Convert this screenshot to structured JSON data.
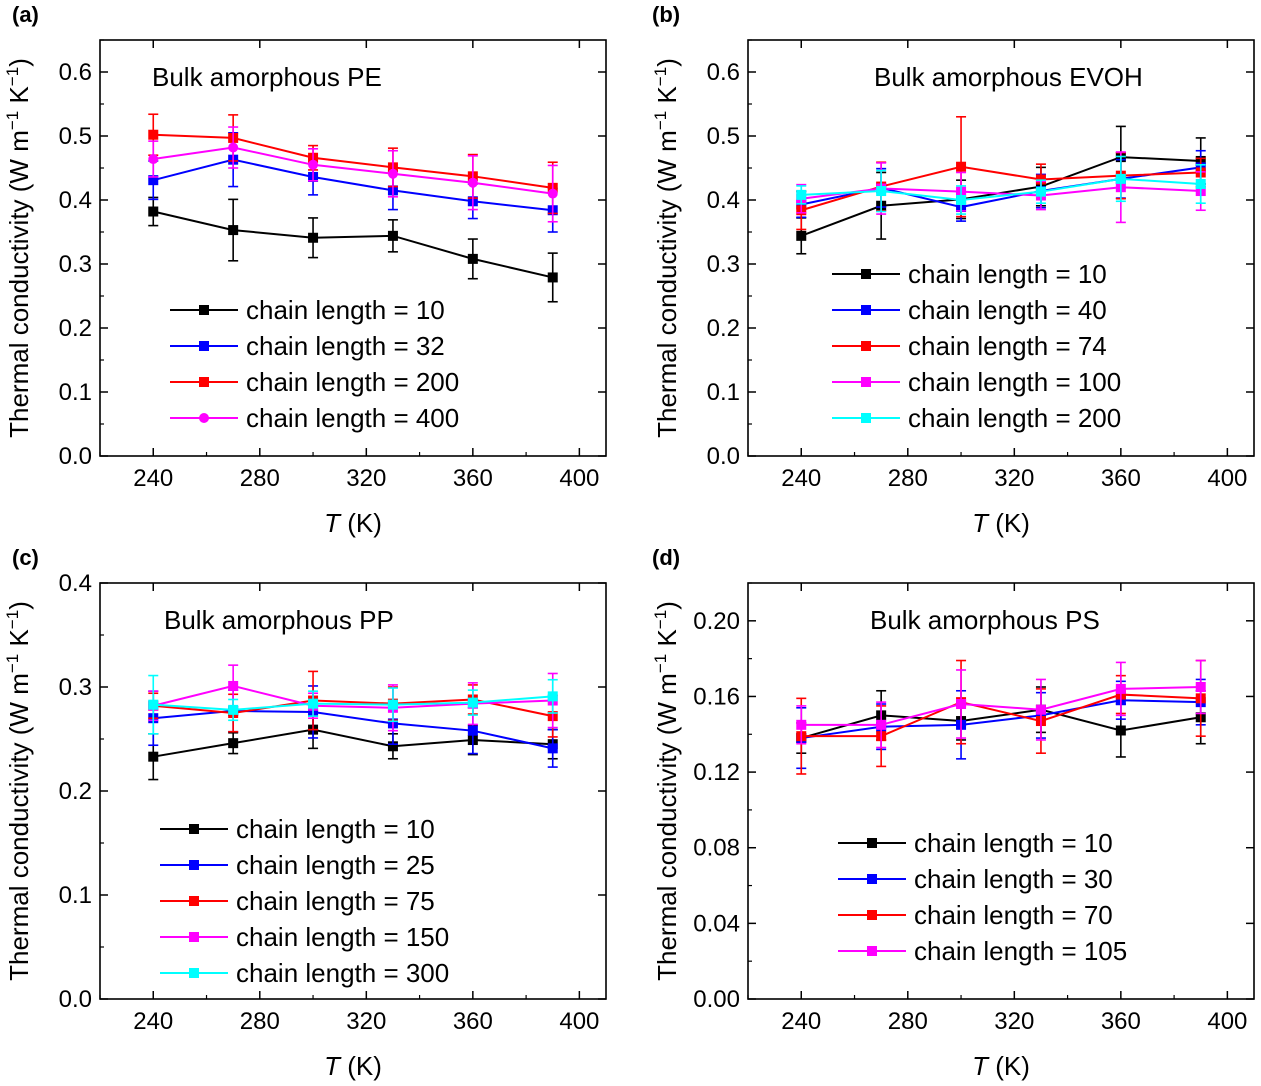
{
  "chart_data": [
    {
      "type": "line",
      "panel_label": "(a)",
      "title": "Bulk amorphous PE",
      "xlabel_italic": "T",
      "xlabel_rest": " (K)",
      "ylabel": "Thermal conductivity (W m",
      "ylabel_exp1": "−1",
      "ylabel_mid": " K",
      "ylabel_exp2": "−1",
      "ylabel_end": ")",
      "xlim": [
        220,
        410
      ],
      "ylim": [
        0.0,
        0.65
      ],
      "xticks": [
        "240",
        "280",
        "320",
        "360",
        "400"
      ],
      "yticks": [
        "0.0",
        "0.1",
        "0.2",
        "0.3",
        "0.4",
        "0.5",
        "0.6"
      ],
      "x": [
        240,
        270,
        300,
        330,
        360,
        390
      ],
      "legend_position": "lower-left",
      "series": [
        {
          "name": "chain length = 10",
          "color": "#000000",
          "marker": "square",
          "values": [
            0.382,
            0.353,
            0.341,
            0.344,
            0.308,
            0.279
          ],
          "errors": [
            0.022,
            0.048,
            0.031,
            0.025,
            0.031,
            0.038
          ]
        },
        {
          "name": "chain length = 32",
          "color": "#0000ff",
          "marker": "square",
          "values": [
            0.431,
            0.463,
            0.436,
            0.415,
            0.398,
            0.384
          ],
          "errors": [
            0.03,
            0.042,
            0.028,
            0.03,
            0.027,
            0.034
          ]
        },
        {
          "name": "chain length = 200",
          "color": "#ff0000",
          "marker": "square",
          "values": [
            0.502,
            0.497,
            0.466,
            0.451,
            0.437,
            0.419
          ],
          "errors": [
            0.032,
            0.036,
            0.019,
            0.03,
            0.034,
            0.04
          ]
        },
        {
          "name": "chain length = 400",
          "color": "#ff00ff",
          "marker": "circle",
          "values": [
            0.464,
            0.482,
            0.455,
            0.441,
            0.427,
            0.41
          ],
          "errors": [
            0.028,
            0.032,
            0.025,
            0.036,
            0.042,
            0.044
          ]
        }
      ]
    },
    {
      "type": "line",
      "panel_label": "(b)",
      "title": "Bulk amorphous EVOH",
      "xlabel_italic": "T",
      "xlabel_rest": " (K)",
      "ylabel": "Thermal conductivity (W m",
      "ylabel_exp1": "−1",
      "ylabel_mid": " K",
      "ylabel_exp2": "−1",
      "ylabel_end": ")",
      "xlim": [
        220,
        410
      ],
      "ylim": [
        0.0,
        0.65
      ],
      "xticks": [
        "240",
        "280",
        "320",
        "360",
        "400"
      ],
      "yticks": [
        "0.0",
        "0.1",
        "0.2",
        "0.3",
        "0.4",
        "0.5",
        "0.6"
      ],
      "x": [
        240,
        270,
        300,
        330,
        360,
        390
      ],
      "legend_position": "lower-center",
      "series": [
        {
          "name": "chain length = 10",
          "color": "#000000",
          "marker": "square",
          "values": [
            0.344,
            0.391,
            0.401,
            0.421,
            0.467,
            0.461
          ],
          "errors": [
            0.028,
            0.052,
            0.03,
            0.03,
            0.048,
            0.036
          ]
        },
        {
          "name": "chain length = 40",
          "color": "#0000ff",
          "marker": "square",
          "values": [
            0.393,
            0.419,
            0.389,
            0.414,
            0.433,
            0.451
          ],
          "errors": [
            0.02,
            0.03,
            0.022,
            0.026,
            0.03,
            0.026
          ]
        },
        {
          "name": "chain length = 74",
          "color": "#ff0000",
          "marker": "square",
          "values": [
            0.384,
            0.421,
            0.452,
            0.432,
            0.438,
            0.443
          ],
          "errors": [
            0.03,
            0.038,
            0.078,
            0.024,
            0.036,
            0.022
          ]
        },
        {
          "name": "chain length = 100",
          "color": "#ff00ff",
          "marker": "square",
          "values": [
            0.402,
            0.418,
            0.413,
            0.407,
            0.42,
            0.414
          ],
          "errors": [
            0.022,
            0.04,
            0.03,
            0.022,
            0.055,
            0.03
          ]
        },
        {
          "name": "chain length = 200",
          "color": "#00ffff",
          "marker": "square",
          "values": [
            0.408,
            0.414,
            0.4,
            0.413,
            0.433,
            0.425
          ],
          "errors": [
            0.014,
            0.032,
            0.022,
            0.018,
            0.035,
            0.03
          ]
        }
      ]
    },
    {
      "type": "line",
      "panel_label": "(c)",
      "title": "Bulk amorphous PP",
      "xlabel_italic": "T",
      "xlabel_rest": " (K)",
      "ylabel": "Thermal conductivity (W m",
      "ylabel_exp1": "−1",
      "ylabel_mid": " K",
      "ylabel_exp2": "−1",
      "ylabel_end": ")",
      "xlim": [
        220,
        410
      ],
      "ylim": [
        0.0,
        0.4
      ],
      "xticks": [
        "240",
        "280",
        "320",
        "360",
        "400"
      ],
      "yticks": [
        "0.0",
        "0.1",
        "0.2",
        "0.3",
        "0.4"
      ],
      "x": [
        240,
        270,
        300,
        330,
        360,
        390
      ],
      "legend_position": "lower-left",
      "series": [
        {
          "name": "chain length = 10",
          "color": "#000000",
          "marker": "square",
          "values": [
            0.233,
            0.246,
            0.259,
            0.243,
            0.249,
            0.245
          ],
          "errors": [
            0.022,
            0.01,
            0.018,
            0.012,
            0.014,
            0.014
          ]
        },
        {
          "name": "chain length = 25",
          "color": "#0000ff",
          "marker": "square",
          "values": [
            0.27,
            0.277,
            0.276,
            0.265,
            0.258,
            0.241
          ],
          "errors": [
            0.026,
            0.02,
            0.025,
            0.02,
            0.022,
            0.018
          ]
        },
        {
          "name": "chain length = 75",
          "color": "#ff0000",
          "marker": "square",
          "values": [
            0.282,
            0.275,
            0.287,
            0.284,
            0.288,
            0.272
          ],
          "errors": [
            0.012,
            0.018,
            0.028,
            0.016,
            0.014,
            0.02
          ]
        },
        {
          "name": "chain length = 150",
          "color": "#ff00ff",
          "marker": "square",
          "values": [
            0.282,
            0.301,
            0.282,
            0.28,
            0.284,
            0.287
          ],
          "errors": [
            0.014,
            0.02,
            0.012,
            0.022,
            0.02,
            0.026
          ]
        },
        {
          "name": "chain length =  300",
          "color": "#00ffff",
          "marker": "square",
          "values": [
            0.283,
            0.278,
            0.284,
            0.283,
            0.285,
            0.291
          ],
          "errors": [
            0.028,
            0.01,
            0.012,
            0.016,
            0.012,
            0.016
          ]
        }
      ]
    },
    {
      "type": "line",
      "panel_label": "(d)",
      "title": "Bulk amorphous PS",
      "xlabel_italic": "T",
      "xlabel_rest": " (K)",
      "ylabel": "Thermal conductivity (W m",
      "ylabel_exp1": "−1",
      "ylabel_mid": " K",
      "ylabel_exp2": "−1",
      "ylabel_end": ")",
      "xlim": [
        220,
        410
      ],
      "ylim": [
        0.0,
        0.22
      ],
      "xticks": [
        "240",
        "280",
        "320",
        "360",
        "400"
      ],
      "yticks": [
        "0.00",
        "0.04",
        "0.08",
        "0.12",
        "0.16",
        "0.20"
      ],
      "x": [
        240,
        270,
        300,
        330,
        360,
        390
      ],
      "legend_position": "lower-left",
      "series": [
        {
          "name": "chain length = 10",
          "color": "#000000",
          "marker": "square",
          "values": [
            0.138,
            0.15,
            0.147,
            0.153,
            0.142,
            0.149
          ],
          "errors": [
            0.008,
            0.013,
            0.01,
            0.012,
            0.014,
            0.014
          ]
        },
        {
          "name": "chain length = 30",
          "color": "#0000ff",
          "marker": "square",
          "values": [
            0.138,
            0.144,
            0.145,
            0.15,
            0.158,
            0.157
          ],
          "errors": [
            0.016,
            0.012,
            0.018,
            0.012,
            0.01,
            0.012
          ]
        },
        {
          "name": "chain length = 70",
          "color": "#ff0000",
          "marker": "square",
          "values": [
            0.139,
            0.139,
            0.157,
            0.147,
            0.161,
            0.159
          ],
          "errors": [
            0.02,
            0.016,
            0.022,
            0.017,
            0.01,
            0.02
          ]
        },
        {
          "name": "chain length = 105",
          "color": "#ff00ff",
          "marker": "square",
          "values": [
            0.145,
            0.145,
            0.156,
            0.153,
            0.164,
            0.165
          ],
          "errors": [
            0.01,
            0.012,
            0.018,
            0.016,
            0.014,
            0.014
          ]
        }
      ]
    }
  ]
}
